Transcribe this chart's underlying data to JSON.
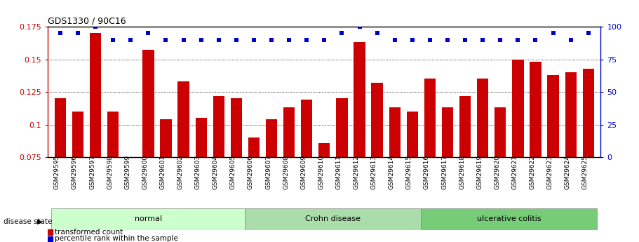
{
  "title": "GDS1330 / 90C16",
  "categories": [
    "GSM29595",
    "GSM29596",
    "GSM29597",
    "GSM29598",
    "GSM29599",
    "GSM29600",
    "GSM29601",
    "GSM29602",
    "GSM29603",
    "GSM29604",
    "GSM29605",
    "GSM29606",
    "GSM29607",
    "GSM29608",
    "GSM29609",
    "GSM29610",
    "GSM29611",
    "GSM29612",
    "GSM29613",
    "GSM29614",
    "GSM29615",
    "GSM29616",
    "GSM29617",
    "GSM29618",
    "GSM29619",
    "GSM29620",
    "GSM29621",
    "GSM29622",
    "GSM29623",
    "GSM29624",
    "GSM29625"
  ],
  "bar_values": [
    0.12,
    0.11,
    0.17,
    0.11,
    0.075,
    0.157,
    0.104,
    0.133,
    0.105,
    0.122,
    0.12,
    0.09,
    0.104,
    0.113,
    0.119,
    0.086,
    0.12,
    0.163,
    0.132,
    0.113,
    0.11,
    0.135,
    0.113,
    0.122,
    0.135,
    0.113,
    0.15,
    0.148,
    0.138,
    0.14,
    0.143
  ],
  "dot_values": [
    95,
    95,
    100,
    90,
    90,
    95,
    90,
    90,
    90,
    90,
    90,
    90,
    90,
    90,
    90,
    90,
    95,
    100,
    95,
    90,
    90,
    90,
    90,
    90,
    90,
    90,
    90,
    90,
    95,
    90,
    95
  ],
  "bar_color": "#CC0000",
  "dot_color": "#0000CC",
  "ylim_left": [
    0.075,
    0.175
  ],
  "ylim_right": [
    0,
    100
  ],
  "yticks_left": [
    0.075,
    0.1,
    0.125,
    0.15,
    0.175
  ],
  "yticks_right": [
    0,
    25,
    50,
    75,
    100
  ],
  "group_colors": [
    "#ccffcc",
    "#aaddaa",
    "#77cc77"
  ],
  "group_labels": [
    "normal",
    "Crohn disease",
    "ulcerative colitis"
  ],
  "group_ends": [
    10,
    20,
    30
  ],
  "legend_bar_label": "transformed count",
  "legend_dot_label": "percentile rank within the sample",
  "background_color": "#ffffff"
}
